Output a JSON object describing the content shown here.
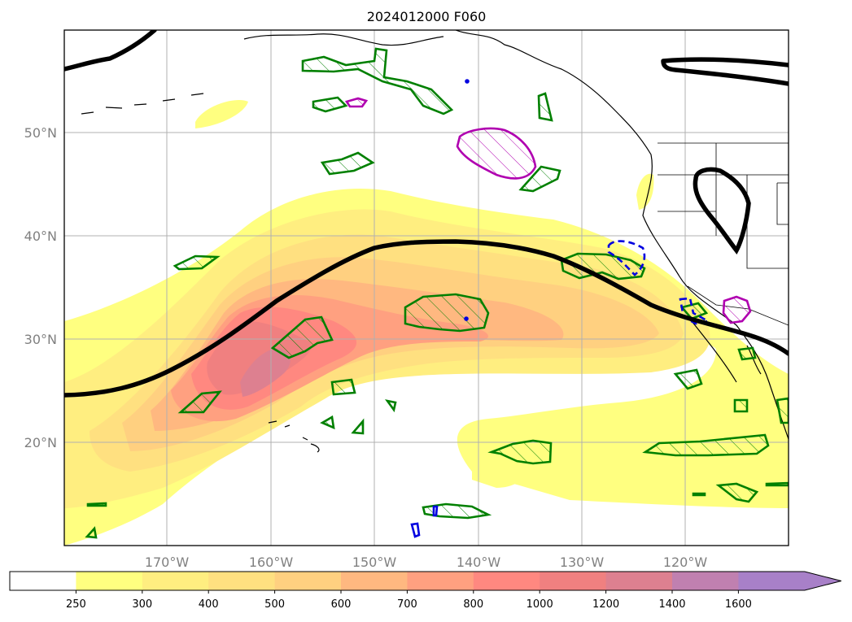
{
  "title": "2024012000 F060",
  "map": {
    "lon_labels": [
      "170°W",
      "160°W",
      "150°W",
      "140°W",
      "130°W",
      "120°W"
    ],
    "lat_labels": [
      "20°N",
      "30°N",
      "40°N",
      "50°N"
    ]
  },
  "colorbar": {
    "levels": [
      "250",
      "300",
      "400",
      "500",
      "600",
      "700",
      "800",
      "1000",
      "1200",
      "1400",
      "1600"
    ],
    "colors": [
      "#ffffff",
      "#ffff80",
      "#ffee80",
      "#ffe080",
      "#ffd080",
      "#ffb880",
      "#ffa080",
      "#ff8880",
      "#f08080",
      "#dd8090",
      "#c080b0",
      "#a880c8"
    ],
    "extend": "max"
  }
}
